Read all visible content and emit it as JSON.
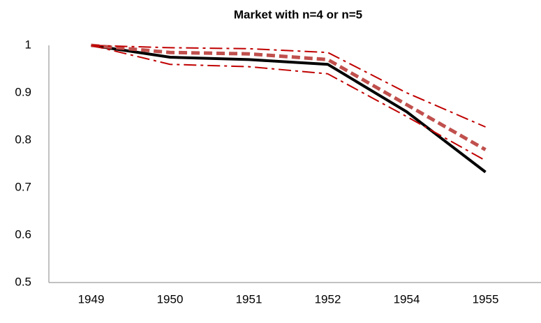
{
  "chart_data": {
    "type": "line",
    "title": "Market with n=4 or n=5",
    "categories": [
      "1949",
      "1950",
      "1951",
      "1952",
      "1954",
      "1955"
    ],
    "series": [
      {
        "color": "#000000",
        "dash": "solid",
        "width": 4,
        "values": [
          1.0,
          0.975,
          0.97,
          0.96,
          0.86,
          0.733
        ]
      },
      {
        "color": "#c0504d",
        "dash": "dash",
        "width": 5,
        "values": [
          1.0,
          0.985,
          0.982,
          0.97,
          0.875,
          0.78
        ]
      },
      {
        "color": "#c00000",
        "dash": "dashdot",
        "width": 2,
        "values": [
          1.0,
          0.995,
          0.993,
          0.985,
          0.9,
          0.828
        ]
      },
      {
        "color": "#c00000",
        "dash": "dashdot",
        "width": 2,
        "values": [
          1.0,
          0.96,
          0.955,
          0.94,
          0.85,
          0.757
        ]
      }
    ],
    "ylim": [
      0.5,
      1
    ],
    "yticks": [
      0.5,
      0.6,
      0.7,
      0.8,
      0.9,
      1
    ],
    "grid": false
  }
}
